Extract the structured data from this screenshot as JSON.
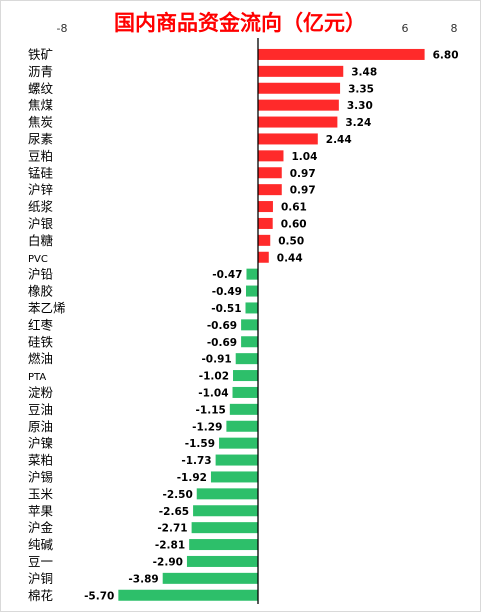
{
  "chart_data": {
    "type": "bar",
    "orientation": "horizontal",
    "title": "国内商品资金流向（亿元）",
    "xlim": [
      -8,
      8
    ],
    "x_tick_labels_shown": [
      "-8",
      "6",
      "8"
    ],
    "categories": [
      "铁矿",
      "沥青",
      "螺纹",
      "焦煤",
      "焦炭",
      "尿素",
      "豆粕",
      "锰硅",
      "沪锌",
      "纸浆",
      "沪银",
      "白糖",
      "PVC",
      "沪铅",
      "橡胶",
      "苯乙烯",
      "红枣",
      "硅铁",
      "燃油",
      "PTA",
      "淀粉",
      "豆油",
      "原油",
      "沪镍",
      "菜粕",
      "沪锡",
      "玉米",
      "苹果",
      "沪金",
      "纯碱",
      "豆一",
      "沪铜",
      "棉花"
    ],
    "values": [
      6.8,
      3.48,
      3.35,
      3.3,
      3.24,
      2.44,
      1.04,
      0.97,
      0.97,
      0.61,
      0.6,
      0.5,
      0.44,
      -0.47,
      -0.49,
      -0.51,
      -0.69,
      -0.69,
      -0.91,
      -1.02,
      -1.04,
      -1.15,
      -1.29,
      -1.59,
      -1.73,
      -1.92,
      -2.5,
      -2.65,
      -2.71,
      -2.81,
      -2.9,
      -3.89,
      -5.7
    ],
    "data_labels": [
      "6.80",
      "3.48",
      "3.35",
      "3.30",
      "3.24",
      "2.44",
      "1.04",
      "0.97",
      "0.97",
      "0.61",
      "0.60",
      "0.50",
      "0.44",
      "-0.47",
      "-0.49",
      "-0.51",
      "-0.69",
      "-0.69",
      "-0.91",
      "-1.02",
      "-1.04",
      "-1.15",
      "-1.29",
      "-1.59",
      "-1.73",
      "-1.92",
      "-2.50",
      "-2.65",
      "-2.71",
      "-2.81",
      "-2.90",
      "-3.89",
      "-5.70"
    ],
    "colors": {
      "positive": "#ff2a2a",
      "negative": "#2dbf6a",
      "title": "#ff0000",
      "axis": "#000000"
    },
    "grid": false,
    "legend": "none"
  }
}
